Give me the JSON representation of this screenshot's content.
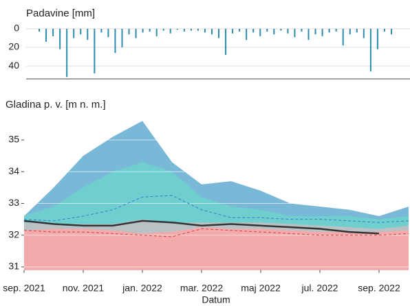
{
  "chart_data": [
    {
      "type": "bar",
      "title": "Padavine [mm]",
      "color": "#2b8cb0",
      "inverted": true,
      "grid": true,
      "ylim": [
        0,
        54
      ],
      "yticks": [
        0,
        20,
        40
      ],
      "categories": [
        null,
        null,
        null,
        null,
        null,
        null,
        null,
        null,
        null,
        null,
        null,
        null,
        null,
        null,
        null,
        null,
        null,
        null,
        null,
        null,
        null,
        null,
        null,
        null,
        null,
        null,
        null,
        null,
        null,
        null,
        null,
        null,
        null,
        null,
        null,
        null,
        null,
        null,
        null,
        null,
        null,
        null,
        null,
        null,
        null,
        null,
        null,
        null,
        null,
        null,
        null,
        null
      ],
      "values": [
        3,
        14,
        8,
        22,
        52,
        10,
        6,
        12,
        48,
        4,
        9,
        26,
        20,
        6,
        10,
        4,
        3,
        8,
        2,
        5,
        1,
        3,
        2,
        2,
        4,
        6,
        10,
        28,
        5,
        3,
        12,
        4,
        8,
        3,
        6,
        2,
        5,
        9,
        3,
        12,
        6,
        8,
        4,
        3,
        18,
        6,
        4,
        10,
        46,
        22,
        3,
        6
      ]
    },
    {
      "type": "area_line",
      "title": "Gladina p. v. [m n. m.]",
      "x_label": "Datum",
      "grid": true,
      "x": [
        "2021-09",
        "2021-10",
        "2021-11",
        "2021-12",
        "2022-01",
        "2022-02",
        "2022-03",
        "2022-04",
        "2022-05",
        "2022-06",
        "2022-07",
        "2022-08",
        "2022-09",
        "2022-10"
      ],
      "xlim": [
        "2021-09",
        "2022-10"
      ],
      "xticks": [
        {
          "value": "2021-09",
          "label": "sep. 2021"
        },
        {
          "value": "2021-11",
          "label": "nov. 2021"
        },
        {
          "value": "2022-01",
          "label": "jan. 2022"
        },
        {
          "value": "2022-03",
          "label": "mar. 2022"
        },
        {
          "value": "2022-05",
          "label": "maj 2022"
        },
        {
          "value": "2022-07",
          "label": "jul. 2022"
        },
        {
          "value": "2022-09",
          "label": "sep. 2022"
        }
      ],
      "ylim": [
        30.9,
        35.7
      ],
      "yticks": [
        31,
        32,
        33,
        34,
        35
      ],
      "areas": [
        {
          "color": "#7ab8d8",
          "values": [
            32.6,
            33.5,
            34.5,
            35.1,
            35.6,
            34.3,
            33.6,
            33.7,
            33.4,
            33.0,
            32.9,
            32.8,
            32.6,
            32.9
          ]
        },
        {
          "color": "#6fcfcf",
          "values": [
            32.6,
            32.9,
            33.5,
            34.0,
            34.3,
            34.0,
            33.2,
            32.9,
            32.8,
            32.6,
            32.6,
            32.6,
            32.5,
            32.6
          ]
        },
        {
          "color": "#b9c1c4",
          "values": [
            32.4,
            32.35,
            32.35,
            32.35,
            32.5,
            32.4,
            32.4,
            32.4,
            32.4,
            32.35,
            32.3,
            32.25,
            32.2,
            32.3
          ]
        },
        {
          "color": "#f4aaaa",
          "values": [
            32.15,
            32.2,
            32.2,
            32.15,
            32.05,
            32.1,
            32.25,
            32.2,
            32.2,
            32.15,
            32.1,
            32.1,
            32.1,
            32.15
          ]
        }
      ],
      "series": [
        {
          "color": "#3a78c9",
          "dash": true,
          "values": [
            32.5,
            32.45,
            32.6,
            32.8,
            33.2,
            33.25,
            32.8,
            32.55,
            32.55,
            32.5,
            32.5,
            32.45,
            32.4,
            32.45
          ]
        },
        {
          "color": "#d04040",
          "dash": true,
          "values": [
            32.15,
            32.1,
            32.1,
            32.05,
            32.0,
            31.95,
            32.2,
            32.15,
            32.1,
            32.05,
            32.0,
            32.0,
            32.0,
            32.05
          ]
        },
        {
          "color": "#333333",
          "dash": false,
          "values": [
            32.45,
            32.35,
            32.3,
            32.3,
            32.45,
            32.4,
            32.3,
            32.35,
            32.3,
            32.25,
            32.2,
            32.1,
            32.05,
            null
          ]
        }
      ]
    }
  ]
}
